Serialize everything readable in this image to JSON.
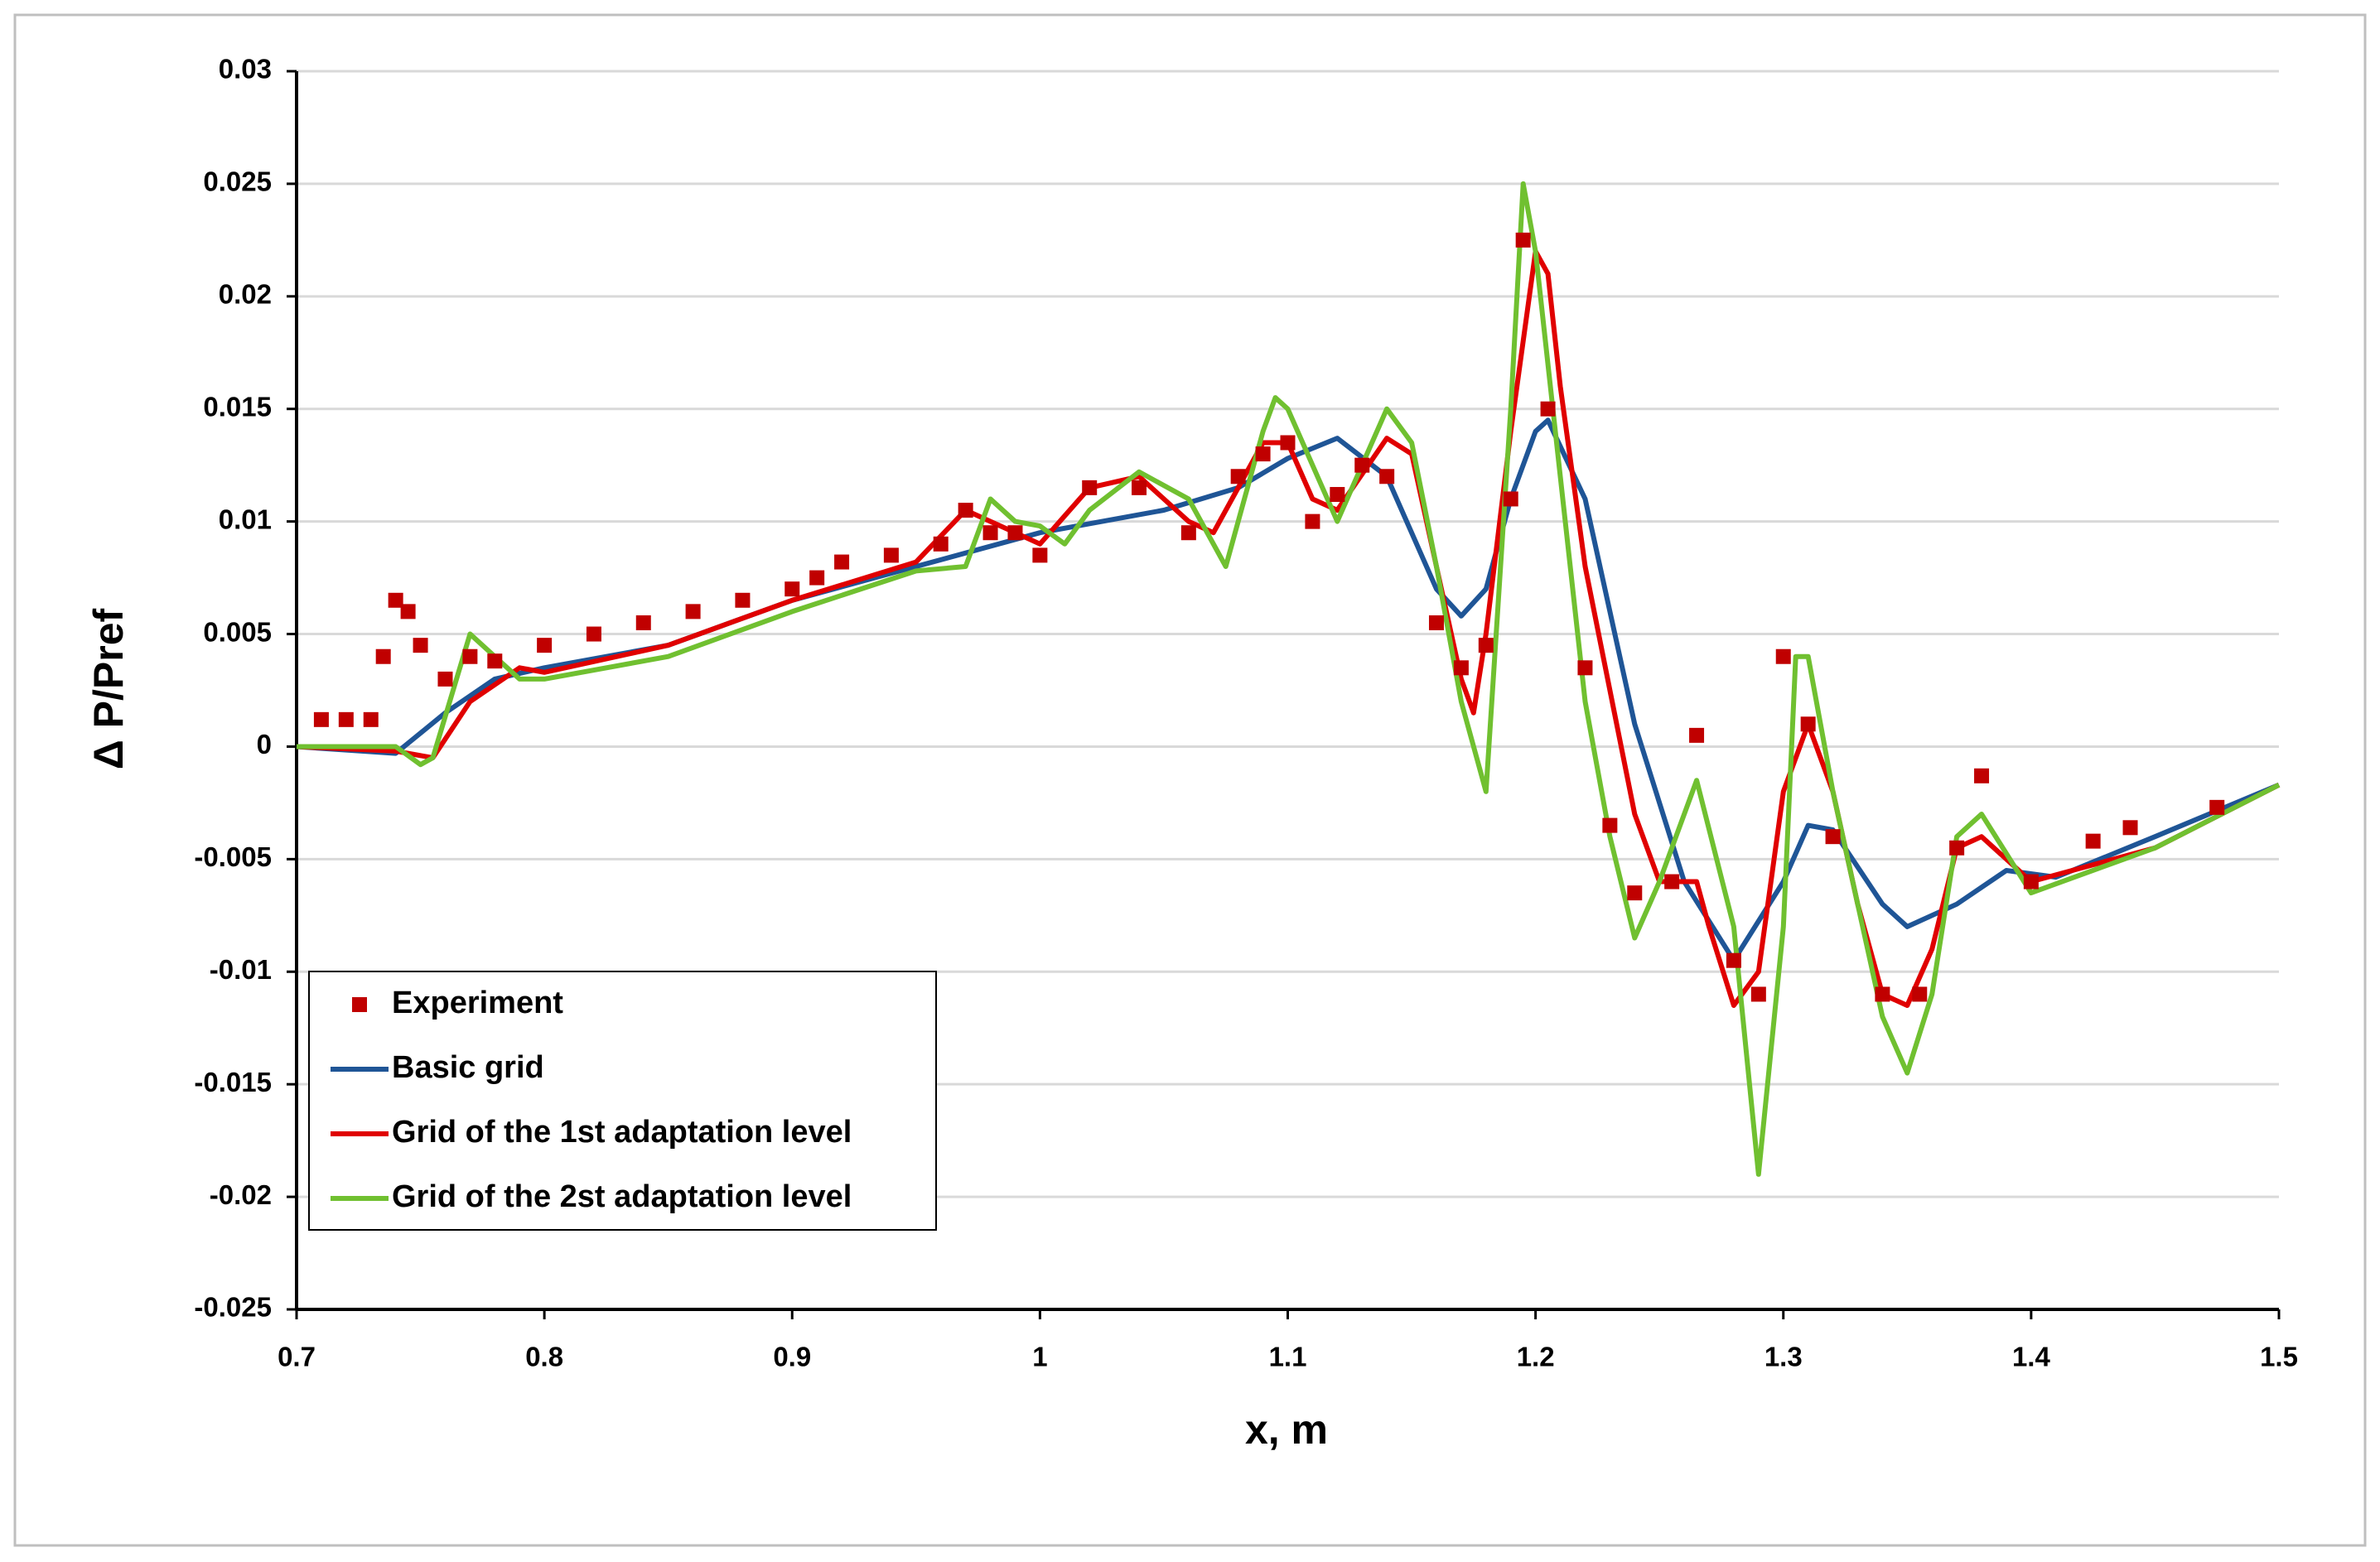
{
  "chart_data": {
    "type": "line",
    "x_label": "x, m",
    "y_label": "Δ P/Pref",
    "xlim": [
      0.7,
      1.5
    ],
    "xticks": [
      0.7,
      0.8,
      0.9,
      1,
      1.1,
      1.2,
      1.3,
      1.4,
      1.5
    ],
    "ylim": [
      -0.025,
      0.03
    ],
    "yticks": [
      0.03,
      0.025,
      0.02,
      0.015,
      0.01,
      0.005,
      0,
      -0.005,
      -0.01,
      -0.015,
      -0.02,
      -0.025
    ],
    "grid": true,
    "legend": "lower left",
    "series": [
      {
        "name": "Experiment",
        "color": "#c00000",
        "mode": "markers",
        "x": [
          0.71,
          0.72,
          0.73,
          0.735,
          0.74,
          0.745,
          0.75,
          0.76,
          0.77,
          0.78,
          0.8,
          0.82,
          0.84,
          0.86,
          0.88,
          0.9,
          0.91,
          0.92,
          0.94,
          0.96,
          0.97,
          0.98,
          0.99,
          1.0,
          1.02,
          1.04,
          1.06,
          1.08,
          1.09,
          1.1,
          1.11,
          1.12,
          1.13,
          1.14,
          1.16,
          1.17,
          1.18,
          1.19,
          1.195,
          1.205,
          1.22,
          1.23,
          1.24,
          1.255,
          1.265,
          1.28,
          1.29,
          1.3,
          1.31,
          1.32,
          1.34,
          1.355,
          1.37,
          1.38,
          1.4,
          1.425,
          1.44,
          1.475
        ],
        "values": [
          0.0012,
          0.0012,
          0.0012,
          0.004,
          0.0065,
          0.006,
          0.0045,
          0.003,
          0.004,
          0.0038,
          0.0045,
          0.005,
          0.0055,
          0.006,
          0.0065,
          0.007,
          0.0075,
          0.0082,
          0.0085,
          0.009,
          0.0105,
          0.0095,
          0.0095,
          0.0085,
          0.0115,
          0.0115,
          0.0095,
          0.012,
          0.013,
          0.0135,
          0.01,
          0.0112,
          0.0125,
          0.012,
          0.0055,
          0.0035,
          0.0045,
          0.011,
          0.0225,
          0.015,
          0.0035,
          -0.0035,
          -0.0065,
          -0.006,
          0.0005,
          -0.0095,
          -0.011,
          0.004,
          0.001,
          -0.004,
          -0.011,
          -0.011,
          -0.0045,
          -0.0013,
          -0.006,
          -0.0042,
          -0.0036,
          -0.0027
        ]
      },
      {
        "name": "Basic grid",
        "color": "#1f5596",
        "mode": "line",
        "x": [
          0.7,
          0.74,
          0.76,
          0.78,
          0.8,
          0.85,
          0.9,
          0.95,
          1.0,
          1.05,
          1.08,
          1.1,
          1.12,
          1.14,
          1.16,
          1.17,
          1.18,
          1.19,
          1.2,
          1.205,
          1.22,
          1.24,
          1.26,
          1.28,
          1.3,
          1.31,
          1.32,
          1.34,
          1.35,
          1.37,
          1.39,
          1.41,
          1.45,
          1.5
        ],
        "values": [
          0,
          -0.0003,
          0.0015,
          0.003,
          0.0035,
          0.0045,
          0.0065,
          0.008,
          0.0095,
          0.0105,
          0.0115,
          0.0128,
          0.0137,
          0.012,
          0.007,
          0.0058,
          0.007,
          0.011,
          0.014,
          0.0145,
          0.011,
          0.001,
          -0.006,
          -0.0095,
          -0.006,
          -0.0035,
          -0.0037,
          -0.007,
          -0.008,
          -0.007,
          -0.0055,
          -0.0058,
          -0.004,
          -0.0017
        ]
      },
      {
        "name": "Grid of the 1st adaptation level",
        "color": "#e00000",
        "mode": "line",
        "x": [
          0.7,
          0.74,
          0.755,
          0.77,
          0.79,
          0.8,
          0.85,
          0.9,
          0.95,
          0.97,
          0.98,
          0.99,
          1.0,
          1.02,
          1.04,
          1.06,
          1.07,
          1.09,
          1.1,
          1.11,
          1.12,
          1.14,
          1.15,
          1.16,
          1.17,
          1.175,
          1.18,
          1.19,
          1.2,
          1.205,
          1.21,
          1.22,
          1.24,
          1.25,
          1.265,
          1.27,
          1.28,
          1.29,
          1.3,
          1.31,
          1.32,
          1.33,
          1.34,
          1.35,
          1.36,
          1.37,
          1.38,
          1.4,
          1.45,
          1.5
        ],
        "values": [
          0,
          -0.0002,
          -0.0005,
          0.002,
          0.0035,
          0.0033,
          0.0045,
          0.0065,
          0.0082,
          0.0105,
          0.01,
          0.0095,
          0.009,
          0.0115,
          0.012,
          0.01,
          0.0095,
          0.0135,
          0.0135,
          0.011,
          0.0105,
          0.0137,
          0.013,
          0.008,
          0.003,
          0.0015,
          0.005,
          0.014,
          0.022,
          0.021,
          0.016,
          0.008,
          -0.003,
          -0.006,
          -0.006,
          -0.008,
          -0.0115,
          -0.01,
          -0.002,
          0.001,
          -0.002,
          -0.007,
          -0.011,
          -0.0115,
          -0.009,
          -0.0045,
          -0.004,
          -0.006,
          -0.0045,
          -0.0017
        ]
      },
      {
        "name": "Grid of the 2st adaptation level",
        "color": "#70c030",
        "mode": "line",
        "x": [
          0.7,
          0.74,
          0.75,
          0.755,
          0.77,
          0.78,
          0.79,
          0.8,
          0.85,
          0.9,
          0.95,
          0.97,
          0.98,
          0.99,
          1.0,
          1.01,
          1.02,
          1.04,
          1.06,
          1.075,
          1.09,
          1.095,
          1.1,
          1.12,
          1.14,
          1.15,
          1.16,
          1.17,
          1.18,
          1.19,
          1.195,
          1.2,
          1.21,
          1.22,
          1.23,
          1.24,
          1.25,
          1.265,
          1.28,
          1.29,
          1.3,
          1.305,
          1.31,
          1.32,
          1.34,
          1.35,
          1.36,
          1.37,
          1.38,
          1.4,
          1.45,
          1.5
        ],
        "values": [
          0,
          0,
          -0.0008,
          -0.0005,
          0.005,
          0.004,
          0.003,
          0.003,
          0.004,
          0.006,
          0.0078,
          0.008,
          0.011,
          0.01,
          0.0098,
          0.009,
          0.0105,
          0.0122,
          0.011,
          0.008,
          0.014,
          0.0155,
          0.015,
          0.01,
          0.015,
          0.0135,
          0.008,
          0.002,
          -0.002,
          0.015,
          0.025,
          0.022,
          0.012,
          0.002,
          -0.004,
          -0.0085,
          -0.006,
          -0.0015,
          -0.008,
          -0.019,
          -0.008,
          0.004,
          0.004,
          -0.002,
          -0.012,
          -0.0145,
          -0.011,
          -0.004,
          -0.003,
          -0.0065,
          -0.0045,
          -0.0017
        ]
      }
    ]
  }
}
